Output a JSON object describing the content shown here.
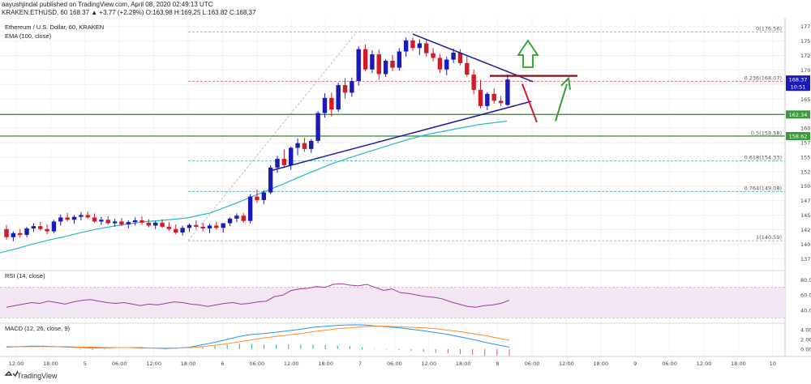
{
  "header": {
    "line1": "aayushjindal published on TradingView.com, April 08, 2020 02:49:13 UTC",
    "line2": "KRAKEN:ETHUSD, 60  168.37  ▲ +3.77 (+2.29%)  O:163.98  H:169.25  L:163.82  C:168.37"
  },
  "legend": {
    "symbol": "Ethereum / U.S. Dollar, 60, KRAKEN",
    "ema": "EMA (100, close)",
    "rsi": "RSI (14, close)",
    "macd": "MACD (12, 26, close, 9)"
  },
  "brand": "TradingView",
  "colors": {
    "bull": "#1a1ab4",
    "bear": "#d11a2a",
    "ema": "#27b8c8",
    "support": "#3c9a3c",
    "trend": "#1c1c9c",
    "resistance": "#8b0d17",
    "fib": "#9e9e9e",
    "rsi": "#9a3c9a",
    "macd": "#2196f3",
    "signal": "#ff8c28"
  },
  "chart_data": {
    "type": "candlestick",
    "interval": "60",
    "symbol": "ETHUSD",
    "ylim": [
      136,
      179
    ],
    "yticks": [
      137.5,
      140,
      142.5,
      145,
      147.5,
      150,
      152.5,
      155,
      157.5,
      160,
      162.5,
      165,
      167.5,
      170,
      172.5,
      175,
      177.5
    ],
    "xticks": [
      "12:00",
      "18:00",
      "5",
      "06:00",
      "12:00",
      "18:00",
      "6",
      "06:00",
      "12:00",
      "18:00",
      "7",
      "06:00",
      "12:00",
      "18:00",
      "8",
      "06:00",
      "12:00",
      "18:00",
      "9",
      "06:00",
      "12:00",
      "18:00",
      "10"
    ],
    "price_tags": [
      {
        "text": "168.37",
        "value": 168.37,
        "color": "#1a1ab4"
      },
      {
        "text": "10:51",
        "value": 167.1,
        "color": "#1a1ab4"
      },
      {
        "text": "162.34",
        "value": 162.34,
        "color": "#3c9a3c"
      },
      {
        "text": "158.62",
        "value": 158.62,
        "color": "#3c9a3c"
      }
    ],
    "fib_levels": [
      {
        "label": "0(176.56)",
        "value": 176.56
      },
      {
        "label": "0.236(168.07)",
        "value": 168.07
      },
      {
        "label": "0.5(158.58)",
        "value": 158.58
      },
      {
        "label": "0.618(154.33)",
        "value": 154.33
      },
      {
        "label": "0.764(149.08)",
        "value": 149.08
      },
      {
        "label": "1(140.59)",
        "value": 140.59
      }
    ],
    "support_levels": [
      162.34,
      158.62
    ],
    "resistance_level": 169.0,
    "candles": [
      [
        142.6,
        143.3,
        140.8,
        141.2
      ],
      [
        141.2,
        142.2,
        140.5,
        141.9
      ],
      [
        141.9,
        142.6,
        141.1,
        141.6
      ],
      [
        141.6,
        143.0,
        141.2,
        142.7
      ],
      [
        142.7,
        143.6,
        142.1,
        143.1
      ],
      [
        143.1,
        143.8,
        142.3,
        142.6
      ],
      [
        142.6,
        143.4,
        141.7,
        142.2
      ],
      [
        142.2,
        144.2,
        141.9,
        143.9
      ],
      [
        143.9,
        145.1,
        143.2,
        144.6
      ],
      [
        144.6,
        145.4,
        143.9,
        144.2
      ],
      [
        144.2,
        145.0,
        143.5,
        144.7
      ],
      [
        144.7,
        145.5,
        144.1,
        145.0
      ],
      [
        145.0,
        145.6,
        144.3,
        144.6
      ],
      [
        144.6,
        145.3,
        143.7,
        143.9
      ],
      [
        143.9,
        144.7,
        143.3,
        144.2
      ],
      [
        144.2,
        144.8,
        143.3,
        143.6
      ],
      [
        143.6,
        144.4,
        143.0,
        143.9
      ],
      [
        143.9,
        144.5,
        143.1,
        143.4
      ],
      [
        143.4,
        144.1,
        142.7,
        143.8
      ],
      [
        143.8,
        144.6,
        143.2,
        144.1
      ],
      [
        144.1,
        144.8,
        143.3,
        143.7
      ],
      [
        143.7,
        144.3,
        142.9,
        143.2
      ],
      [
        143.2,
        144.0,
        142.6,
        143.7
      ],
      [
        143.7,
        144.3,
        142.8,
        143.0
      ],
      [
        143.0,
        143.8,
        142.3,
        142.6
      ],
      [
        142.6,
        143.4,
        141.7,
        142.0
      ],
      [
        142.0,
        143.2,
        141.5,
        142.8
      ],
      [
        142.8,
        143.6,
        142.1,
        143.3
      ],
      [
        143.3,
        144.1,
        142.6,
        143.0
      ],
      [
        143.0,
        143.7,
        142.2,
        142.7
      ],
      [
        142.7,
        143.5,
        141.9,
        143.2
      ],
      [
        143.2,
        143.9,
        142.5,
        142.8
      ],
      [
        142.8,
        143.5,
        142.0,
        143.6
      ],
      [
        143.6,
        144.6,
        143.1,
        144.4
      ],
      [
        144.4,
        145.3,
        143.8,
        144.9
      ],
      [
        144.9,
        145.4,
        143.7,
        144.0
      ],
      [
        144.0,
        148.6,
        143.6,
        148.2
      ],
      [
        148.2,
        149.4,
        147.1,
        147.6
      ],
      [
        147.6,
        149.3,
        146.9,
        148.9
      ],
      [
        148.9,
        153.6,
        148.6,
        153.2
      ],
      [
        153.2,
        155.2,
        152.3,
        154.7
      ],
      [
        154.7,
        156.3,
        153.1,
        153.6
      ],
      [
        153.6,
        156.8,
        152.8,
        156.6
      ],
      [
        156.6,
        158.2,
        155.3,
        157.4
      ],
      [
        157.4,
        158.3,
        155.9,
        156.4
      ],
      [
        156.4,
        158.1,
        155.7,
        157.8
      ],
      [
        157.8,
        162.9,
        157.4,
        162.6
      ],
      [
        162.6,
        166.0,
        161.8,
        165.2
      ],
      [
        165.2,
        166.1,
        162.0,
        163.2
      ],
      [
        163.2,
        167.8,
        162.8,
        167.4
      ],
      [
        167.4,
        168.6,
        165.1,
        166.1
      ],
      [
        166.1,
        168.7,
        165.4,
        168.1
      ],
      [
        168.1,
        174.1,
        167.3,
        173.6
      ],
      [
        173.6,
        174.4,
        169.8,
        170.1
      ],
      [
        170.1,
        173.4,
        169.5,
        172.7
      ],
      [
        172.7,
        173.5,
        168.4,
        169.3
      ],
      [
        169.3,
        171.9,
        168.8,
        171.6
      ],
      [
        171.6,
        172.6,
        169.8,
        170.4
      ],
      [
        170.4,
        173.8,
        169.9,
        173.2
      ],
      [
        173.2,
        175.6,
        172.3,
        175.1
      ],
      [
        175.1,
        175.6,
        173.3,
        173.8
      ],
      [
        173.8,
        175.3,
        172.6,
        174.6
      ],
      [
        174.6,
        175.2,
        172.3,
        172.9
      ],
      [
        172.9,
        173.8,
        171.5,
        172.1
      ],
      [
        172.1,
        172.8,
        169.5,
        170.1
      ],
      [
        170.1,
        172.3,
        169.1,
        171.8
      ],
      [
        171.8,
        173.7,
        171.2,
        173.0
      ],
      [
        173.0,
        173.6,
        170.8,
        171.2
      ],
      [
        171.2,
        172.6,
        168.8,
        169.2
      ],
      [
        169.2,
        170.1,
        165.8,
        166.6
      ],
      [
        166.6,
        168.3,
        163.4,
        163.8
      ],
      [
        163.8,
        166.2,
        163.1,
        165.9
      ],
      [
        165.9,
        166.8,
        164.2,
        164.7
      ],
      [
        164.7,
        165.5,
        163.8,
        164.3
      ],
      [
        163.98,
        169.25,
        163.82,
        168.37
      ]
    ],
    "ema100": [
      [
        0,
        138.5
      ],
      [
        20,
        139.2
      ],
      [
        40,
        140.0
      ],
      [
        60,
        140.7
      ],
      [
        80,
        141.3
      ],
      [
        100,
        142.0
      ],
      [
        120,
        142.6
      ],
      [
        140,
        143.1
      ],
      [
        160,
        143.5
      ],
      [
        180,
        143.9
      ],
      [
        200,
        144.1
      ],
      [
        230,
        144.5
      ],
      [
        260,
        145.4
      ],
      [
        290,
        147.0
      ],
      [
        320,
        148.7
      ],
      [
        350,
        150.4
      ],
      [
        380,
        152.2
      ],
      [
        410,
        153.9
      ],
      [
        440,
        155.3
      ],
      [
        470,
        156.6
      ],
      [
        500,
        157.9
      ],
      [
        530,
        159.0
      ],
      [
        560,
        159.8
      ],
      [
        590,
        160.6
      ],
      [
        625,
        161.2
      ]
    ],
    "rsi": {
      "levels": [
        30,
        70
      ],
      "yticks": [
        40,
        60,
        80
      ],
      "range": [
        25,
        90
      ],
      "values": [
        44,
        46,
        48,
        50,
        49,
        52,
        50,
        48,
        51,
        53,
        54,
        52,
        50,
        49,
        50,
        48,
        46,
        48,
        47,
        49,
        51,
        50,
        48,
        47,
        45,
        47,
        49,
        50,
        48,
        49,
        51,
        52,
        58,
        60,
        66,
        68,
        69,
        71,
        70,
        74,
        75,
        73,
        72,
        74,
        70,
        66,
        68,
        63,
        62,
        60,
        58,
        57,
        55,
        51,
        48,
        45,
        44,
        46,
        47,
        49,
        53
      ]
    },
    "macd": {
      "yticks": [
        0,
        2,
        4
      ],
      "range": [
        -1.2,
        5
      ],
      "macd": [
        0.4,
        0.5,
        0.6,
        0.6,
        0.5,
        0.4,
        0.3,
        0.2,
        0.2,
        0.3,
        0.3,
        0.2,
        0.2,
        0.1,
        0.2,
        0.4,
        0.9,
        1.4,
        2.0,
        2.6,
        3.0,
        3.2,
        3.5,
        3.8,
        4.1,
        4.5,
        4.7,
        4.9,
        5.0,
        5.0,
        4.8,
        4.6,
        4.4,
        4.1,
        3.8,
        3.4,
        3.0,
        2.5,
        2.0,
        1.4,
        0.9,
        0.4
      ],
      "signal": [
        0.5,
        0.5,
        0.5,
        0.5,
        0.5,
        0.5,
        0.4,
        0.4,
        0.3,
        0.3,
        0.3,
        0.3,
        0.2,
        0.2,
        0.2,
        0.3,
        0.5,
        0.8,
        1.1,
        1.5,
        1.9,
        2.3,
        2.6,
        2.9,
        3.2,
        3.6,
        3.9,
        4.2,
        4.4,
        4.6,
        4.7,
        4.7,
        4.6,
        4.5,
        4.4,
        4.2,
        3.9,
        3.6,
        3.2,
        2.8,
        2.3,
        1.8
      ]
    }
  }
}
